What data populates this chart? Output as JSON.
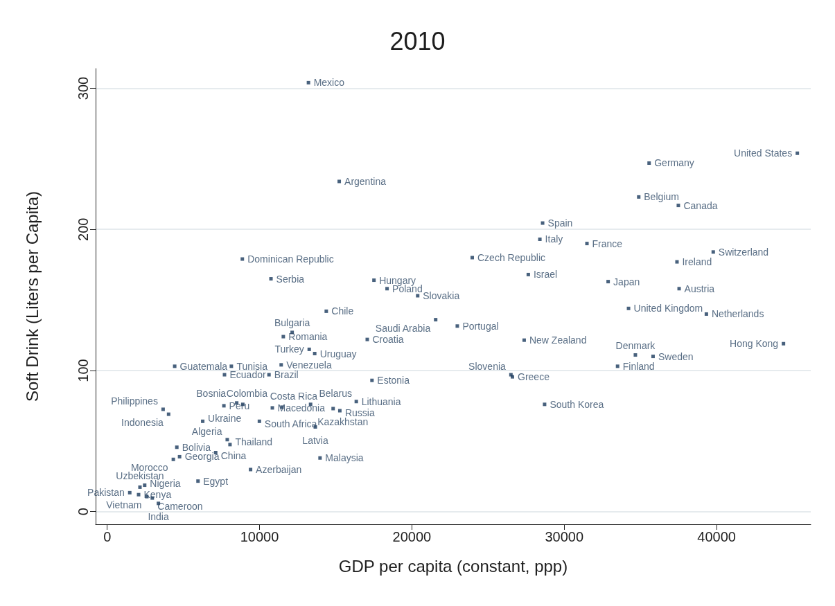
{
  "chart_data": {
    "type": "scatter",
    "title": "2010",
    "xlabel": "GDP per capita (constant, ppp)",
    "ylabel": "Soft Drink (Liters per Capita)",
    "x": [
      13210,
      15230,
      45300,
      35570,
      34890,
      37490,
      28580,
      28400,
      31490,
      39780,
      37400,
      8870,
      23960,
      27640,
      32880,
      37540,
      10750,
      17510,
      18370,
      20380,
      14380,
      34220,
      39330,
      21560,
      22980,
      12140,
      11560,
      17070,
      27370,
      44390,
      13260,
      13620,
      34670,
      35830,
      4430,
      8150,
      11420,
      7700,
      10620,
      17380,
      26500,
      26600,
      33500,
      28710,
      16350,
      13350,
      10840,
      11470,
      14830,
      15270,
      8500,
      8900,
      7660,
      3670,
      4030,
      6270,
      9990,
      13660,
      7880,
      8060,
      4570,
      7120,
      4750,
      4340,
      13970,
      9410,
      5960,
      2150,
      2460,
      1480,
      2060,
      2600,
      2960,
      3360
    ],
    "values": [
      304,
      234,
      254,
      247,
      223,
      217,
      204.5,
      193,
      190,
      184,
      177,
      179,
      180,
      168,
      163,
      158,
      165,
      164,
      158,
      153,
      142,
      144,
      140,
      136,
      131.5,
      127,
      124,
      122,
      121.5,
      119,
      115,
      112,
      111,
      110,
      103,
      103,
      104,
      97,
      97,
      93,
      97,
      95.5,
      103,
      76,
      78,
      76,
      73.5,
      74,
      73,
      71.5,
      77,
      76,
      75,
      72.5,
      69,
      64,
      64,
      60,
      51,
      47.5,
      45.6,
      41.8,
      38.9,
      37,
      38,
      29.8,
      21.6,
      17.3,
      18.7,
      13.4,
      12,
      10.6,
      9.6,
      5.8
    ],
    "value_labels": [
      "Mexico",
      "Argentina",
      "United States",
      "Germany",
      "Belgium",
      "Canada",
      "Spain",
      "Italy",
      "France",
      "Switzerland",
      "Ireland",
      "Dominican Republic",
      "Czech Republic",
      "Israel",
      "Japan",
      "Austria",
      "Serbia",
      "Hungary",
      "Poland",
      "Slovakia",
      "Chile",
      "United Kingdom",
      "Netherlands",
      "Saudi Arabia",
      "Portugal",
      "Bulgaria",
      "Romania",
      "Croatia",
      "New Zealand",
      "Hong Kong",
      "Turkey",
      "Uruguay",
      "Denmark",
      "Sweden",
      "Guatemala",
      "Tunisia",
      "Venezuela",
      "Ecuador",
      "Brazil",
      "Estonia",
      "Slovenia",
      "Greece",
      "Finland",
      "South Korea",
      "Lithuania",
      "Belarus",
      "Macedonia",
      "Costa Rica",
      "Kazakhstan",
      "Russia",
      "Bosnia",
      "Colombia",
      "Peru",
      "Philippines",
      "Indonesia",
      "Ukraine",
      "South Africa",
      "Latvia",
      "Algeria",
      "Thailand",
      "Bolivia",
      "China",
      "Georgia",
      "Morocco",
      "Malaysia",
      "Azerbaijan",
      "Egypt",
      "Uzbekistan",
      "Nigeria",
      "Pakistan",
      "Kenya",
      "Vietnam",
      "Cameroon",
      "India"
    ],
    "color": "#1a3a5c",
    "marker": "square",
    "grid": "y",
    "xlim": [
      -760,
      46180
    ],
    "xticks": [
      0,
      10000,
      20000,
      30000,
      40000
    ],
    "ylim": [
      -9,
      314
    ],
    "yticks": [
      0,
      100,
      200,
      300
    ]
  }
}
